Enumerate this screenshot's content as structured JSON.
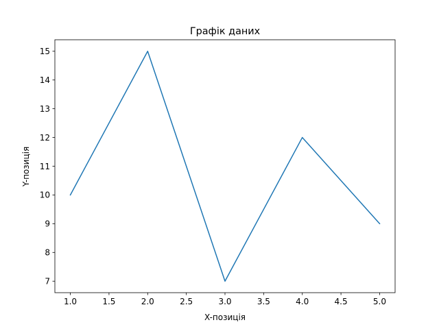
{
  "chart_data": {
    "type": "line",
    "title": "Графік даних",
    "xlabel": "X-позиція",
    "ylabel": "Y-позиція",
    "x": [
      1,
      2,
      3,
      4,
      5
    ],
    "series": [
      {
        "values": [
          10,
          15,
          7,
          12,
          9
        ]
      }
    ],
    "xlim": [
      0.8,
      5.2
    ],
    "ylim": [
      6.6,
      15.4
    ],
    "xticks": [
      "1.0",
      "1.5",
      "2.0",
      "2.5",
      "3.0",
      "3.5",
      "4.0",
      "4.5",
      "5.0"
    ],
    "yticks": [
      "7",
      "8",
      "9",
      "10",
      "11",
      "12",
      "13",
      "14",
      "15"
    ],
    "grid": false,
    "line_color": "#1f77b4"
  }
}
